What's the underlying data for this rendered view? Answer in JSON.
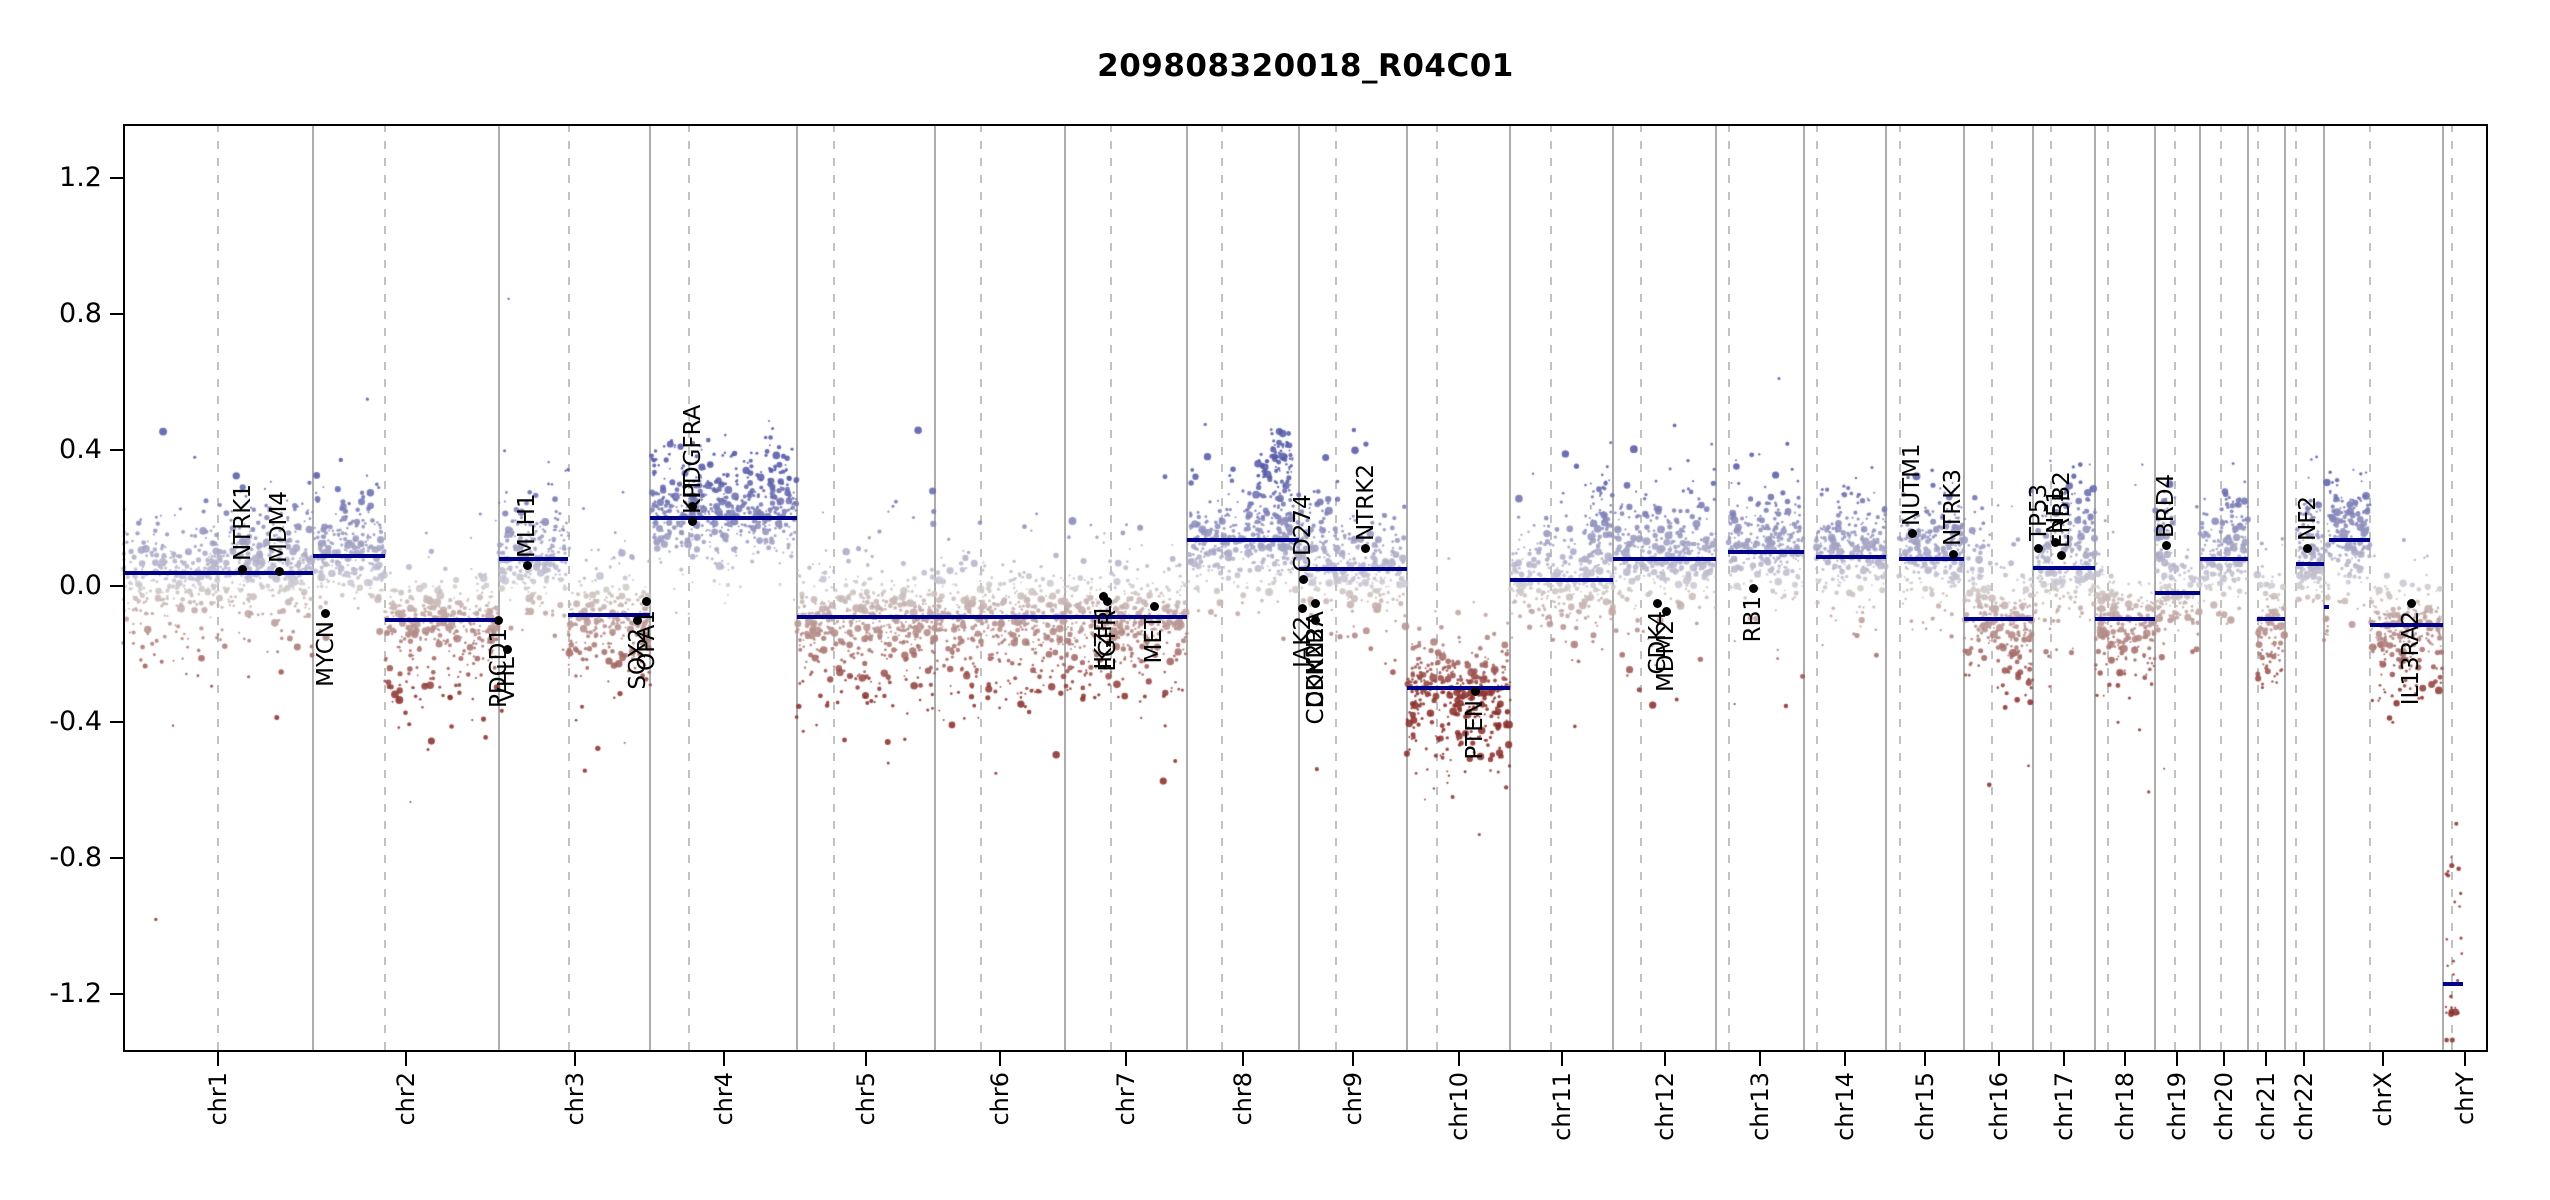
{
  "title": "209808320018_R04C01",
  "chart_data": {
    "type": "scatter",
    "title": "209808320018_R04C01",
    "xlabel": "",
    "ylabel": "",
    "ylim": [
      -1.37,
      1.36
    ],
    "grid": "solid gray lines at chromosome boundaries, dashed gray lines at centromeres",
    "legend": "none",
    "colors": {
      "segment": "#00008b",
      "gain_point": "#565fa8",
      "neutral_point": "#d0cccb",
      "loss_point": "#8b312c",
      "gene_marker": "#000000",
      "boundary_line": "#adadad",
      "centromere_line": "#c2c2c2"
    },
    "yticks": [
      {
        "v": 1.2,
        "label": "1.2"
      },
      {
        "v": 0.8,
        "label": "0.8"
      },
      {
        "v": 0.4,
        "label": "0.4"
      },
      {
        "v": 0.0,
        "label": "0.0"
      },
      {
        "v": -0.4,
        "label": "-0.4"
      },
      {
        "v": -0.8,
        "label": "-0.8"
      },
      {
        "v": -1.2,
        "label": "-1.2"
      }
    ],
    "genome_total_mb": 3095.68,
    "chromosomes": [
      {
        "name": "chr1",
        "length_mb": 249.25,
        "centromere_mb": 125.0
      },
      {
        "name": "chr2",
        "length_mb": 243.2,
        "centromere_mb": 93.3
      },
      {
        "name": "chr3",
        "length_mb": 198.02,
        "centromere_mb": 91.0
      },
      {
        "name": "chr4",
        "length_mb": 191.15,
        "centromere_mb": 50.4
      },
      {
        "name": "chr5",
        "length_mb": 180.92,
        "centromere_mb": 48.4
      },
      {
        "name": "chr6",
        "length_mb": 171.12,
        "centromere_mb": 61.0
      },
      {
        "name": "chr7",
        "length_mb": 159.14,
        "centromere_mb": 59.9
      },
      {
        "name": "chr8",
        "length_mb": 146.36,
        "centromere_mb": 45.6
      },
      {
        "name": "chr9",
        "length_mb": 141.21,
        "centromere_mb": 49.0
      },
      {
        "name": "chr10",
        "length_mb": 135.53,
        "centromere_mb": 40.2
      },
      {
        "name": "chr11",
        "length_mb": 135.01,
        "centromere_mb": 53.7
      },
      {
        "name": "chr12",
        "length_mb": 133.85,
        "centromere_mb": 35.8
      },
      {
        "name": "chr13",
        "length_mb": 115.17,
        "centromere_mb": 17.9
      },
      {
        "name": "chr14",
        "length_mb": 107.35,
        "centromere_mb": 17.6
      },
      {
        "name": "chr15",
        "length_mb": 102.53,
        "centromere_mb": 19.0
      },
      {
        "name": "chr16",
        "length_mb": 90.35,
        "centromere_mb": 36.6
      },
      {
        "name": "chr17",
        "length_mb": 81.2,
        "centromere_mb": 24.0
      },
      {
        "name": "chr18",
        "length_mb": 78.08,
        "centromere_mb": 17.2
      },
      {
        "name": "chr19",
        "length_mb": 59.13,
        "centromere_mb": 26.5
      },
      {
        "name": "chr20",
        "length_mb": 63.03,
        "centromere_mb": 27.5
      },
      {
        "name": "chr21",
        "length_mb": 48.13,
        "centromere_mb": 13.2
      },
      {
        "name": "chr22",
        "length_mb": 51.3,
        "centromere_mb": 14.7
      },
      {
        "name": "chrX",
        "length_mb": 155.27,
        "centromere_mb": 60.6
      },
      {
        "name": "chrY",
        "length_mb": 59.37,
        "centromere_mb": 12.5
      }
    ],
    "segments": [
      {
        "chrom": "chr1",
        "start_mb": 0,
        "end_mb": 249.25,
        "log2": 0.04
      },
      {
        "chrom": "chr2",
        "start_mb": 0,
        "end_mb": 93.3,
        "log2": 0.09
      },
      {
        "chrom": "chr2",
        "start_mb": 93.3,
        "end_mb": 243.2,
        "log2": -0.1
      },
      {
        "chrom": "chr3",
        "start_mb": 0,
        "end_mb": 90.5,
        "log2": 0.08
      },
      {
        "chrom": "chr3",
        "start_mb": 90.5,
        "end_mb": 198.02,
        "log2": -0.085
      },
      {
        "chrom": "chr4",
        "start_mb": 0,
        "end_mb": 191.15,
        "log2": 0.2
      },
      {
        "chrom": "chr5",
        "start_mb": 0,
        "end_mb": 180.92,
        "log2": -0.09
      },
      {
        "chrom": "chr6",
        "start_mb": 0,
        "end_mb": 171.12,
        "log2": -0.09
      },
      {
        "chrom": "chr7",
        "start_mb": 0,
        "end_mb": 159.14,
        "log2": -0.09
      },
      {
        "chrom": "chr8",
        "start_mb": 0,
        "end_mb": 146.36,
        "log2": 0.135
      },
      {
        "chrom": "chr9",
        "start_mb": 0,
        "end_mb": 141.21,
        "log2": 0.05
      },
      {
        "chrom": "chr10",
        "start_mb": 0,
        "end_mb": 135.53,
        "log2": -0.3
      },
      {
        "chrom": "chr11",
        "start_mb": 0,
        "end_mb": 135.01,
        "log2": 0.02
      },
      {
        "chrom": "chr12",
        "start_mb": 0,
        "end_mb": 133.85,
        "log2": 0.08
      },
      {
        "chrom": "chr13",
        "start_mb": 16,
        "end_mb": 115.17,
        "log2": 0.1
      },
      {
        "chrom": "chr14",
        "start_mb": 16,
        "end_mb": 107.35,
        "log2": 0.085
      },
      {
        "chrom": "chr15",
        "start_mb": 17,
        "end_mb": 102.53,
        "log2": 0.08
      },
      {
        "chrom": "chr16",
        "start_mb": 0,
        "end_mb": 90.35,
        "log2": -0.095
      },
      {
        "chrom": "chr17",
        "start_mb": 0,
        "end_mb": 81.2,
        "log2": 0.055
      },
      {
        "chrom": "chr18",
        "start_mb": 0,
        "end_mb": 78.08,
        "log2": -0.095
      },
      {
        "chrom": "chr19",
        "start_mb": 0,
        "end_mb": 59.13,
        "log2": -0.02
      },
      {
        "chrom": "chr20",
        "start_mb": 0,
        "end_mb": 63.03,
        "log2": 0.08
      },
      {
        "chrom": "chr21",
        "start_mb": 12,
        "end_mb": 48.13,
        "log2": -0.097
      },
      {
        "chrom": "chr22",
        "start_mb": 15,
        "end_mb": 51.3,
        "log2": 0.065
      },
      {
        "chrom": "chrX",
        "start_mb": 0,
        "end_mb": 6,
        "log2": -0.06
      },
      {
        "chrom": "chrX",
        "start_mb": 6,
        "end_mb": 60.6,
        "log2": 0.135
      },
      {
        "chrom": "chrX",
        "start_mb": 60.6,
        "end_mb": 155.27,
        "log2": -0.115
      },
      {
        "chrom": "chrY",
        "start_mb": 0,
        "end_mb": 26,
        "log2": -1.17,
        "density": 0
      }
    ],
    "genes": [
      {
        "name": "NTRK1",
        "chrom": "chr1",
        "mb": 156.8,
        "log2": 0.05,
        "label": "above"
      },
      {
        "name": "MDM4",
        "chrom": "chr1",
        "mb": 204.5,
        "log2": 0.045,
        "label": "above"
      },
      {
        "name": "MYCN",
        "chrom": "chr2",
        "mb": 16.1,
        "log2": -0.08,
        "label": "below"
      },
      {
        "name": "PDCD1",
        "chrom": "chr2",
        "mb": 242.8,
        "log2": -0.1,
        "label": "below"
      },
      {
        "name": "VHL",
        "chrom": "chr3",
        "mb": 10.2,
        "log2": -0.185,
        "label": "below"
      },
      {
        "name": "MLH1",
        "chrom": "chr3",
        "mb": 37.0,
        "log2": 0.06,
        "label": "above"
      },
      {
        "name": "SOX2",
        "chrom": "chr3",
        "mb": 181.4,
        "log2": -0.1,
        "label": "below"
      },
      {
        "name": "OPA1",
        "chrom": "chr3",
        "mb": 193.3,
        "log2": -0.045,
        "label": "below"
      },
      {
        "name": "PDGFRA",
        "chrom": "chr4",
        "mb": 55.1,
        "log2": 0.235,
        "label": "above"
      },
      {
        "name": "KIT",
        "chrom": "chr4",
        "mb": 55.6,
        "log2": 0.19,
        "label": "above"
      },
      {
        "name": "IKZF1",
        "chrom": "chr7",
        "mb": 50.3,
        "log2": -0.03,
        "label": "below"
      },
      {
        "name": "EGFR",
        "chrom": "chr7",
        "mb": 55.1,
        "log2": -0.045,
        "label": "below"
      },
      {
        "name": "MET",
        "chrom": "chr7",
        "mb": 116.3,
        "log2": -0.06,
        "label": "below"
      },
      {
        "name": "JAK2",
        "chrom": "chr9",
        "mb": 5.0,
        "log2": -0.065,
        "label": "below"
      },
      {
        "name": "CD274",
        "chrom": "chr9",
        "mb": 5.45,
        "log2": 0.02,
        "label": "above"
      },
      {
        "name": "CDKN2A",
        "chrom": "chr9",
        "mb": 21.97,
        "log2": -0.05,
        "label": "below"
      },
      {
        "name": "CDKN2B",
        "chrom": "chr9",
        "mb": 22.0,
        "log2": -0.1,
        "label": "below"
      },
      {
        "name": "NTRK2",
        "chrom": "chr9",
        "mb": 87.3,
        "log2": 0.11,
        "label": "above"
      },
      {
        "name": "PTEN",
        "chrom": "chr10",
        "mb": 89.7,
        "log2": -0.31,
        "label": "below"
      },
      {
        "name": "CDK4",
        "chrom": "chr12",
        "mb": 58.1,
        "log2": -0.05,
        "label": "below"
      },
      {
        "name": "MDM2",
        "chrom": "chr12",
        "mb": 69.2,
        "log2": -0.075,
        "label": "below"
      },
      {
        "name": "RB1",
        "chrom": "chr13",
        "mb": 48.9,
        "log2": -0.005,
        "label": "below"
      },
      {
        "name": "NUTM1",
        "chrom": "chr15",
        "mb": 34.6,
        "log2": 0.155,
        "label": "above"
      },
      {
        "name": "NTRK3",
        "chrom": "chr15",
        "mb": 88.4,
        "log2": 0.095,
        "label": "above"
      },
      {
        "name": "TP53",
        "chrom": "chr17",
        "mb": 7.57,
        "log2": 0.11,
        "label": "above"
      },
      {
        "name": "NF1",
        "chrom": "chr17",
        "mb": 29.4,
        "log2": 0.13,
        "label": "above"
      },
      {
        "name": "ERBB2",
        "chrom": "chr17",
        "mb": 37.8,
        "log2": 0.09,
        "label": "above"
      },
      {
        "name": "BRD4",
        "chrom": "chr19",
        "mb": 15.3,
        "log2": 0.12,
        "label": "above"
      },
      {
        "name": "NF2",
        "chrom": "chr22",
        "mb": 30.0,
        "log2": 0.11,
        "label": "above"
      },
      {
        "name": "IL13RA2",
        "chrom": "chrX",
        "mb": 114.25,
        "log2": -0.05,
        "label": "below"
      }
    ],
    "clusters": [
      {
        "chrom": "chr4",
        "start_mb": 0,
        "end_mb": 191,
        "n": 120,
        "mean": 0.3,
        "sd": 0.07
      },
      {
        "chrom": "chr8",
        "start_mb": 90,
        "end_mb": 140,
        "n": 80,
        "mean": 0.3,
        "sd": 0.07
      },
      {
        "chrom": "chr8",
        "start_mb": 110,
        "end_mb": 135,
        "n": 30,
        "mean": 0.4,
        "sd": 0.05
      },
      {
        "chrom": "chr11",
        "start_mb": 98,
        "end_mb": 135,
        "n": 60,
        "mean": 0.2,
        "sd": 0.07
      },
      {
        "chrom": "chr17",
        "start_mb": 38,
        "end_mb": 81,
        "n": 50,
        "mean": 0.2,
        "sd": 0.07
      },
      {
        "chrom": "chr20",
        "start_mb": 25,
        "end_mb": 63,
        "n": 45,
        "mean": 0.19,
        "sd": 0.07
      },
      {
        "chrom": "chr12",
        "start_mb": 0,
        "end_mb": 133,
        "n": 50,
        "mean": 0.17,
        "sd": 0.07
      },
      {
        "chrom": "chr15",
        "start_mb": 20,
        "end_mb": 102,
        "n": 45,
        "mean": 0.18,
        "sd": 0.07
      },
      {
        "chrom": "chr14",
        "start_mb": 20,
        "end_mb": 107,
        "n": 40,
        "mean": 0.17,
        "sd": 0.06
      },
      {
        "chrom": "chr13",
        "start_mb": 20,
        "end_mb": 115,
        "n": 45,
        "mean": 0.18,
        "sd": 0.06
      },
      {
        "chrom": "chr19",
        "start_mb": 0,
        "end_mb": 24,
        "n": 35,
        "mean": 0.17,
        "sd": 0.07
      },
      {
        "chrom": "chr22",
        "start_mb": 20,
        "end_mb": 51,
        "n": 40,
        "mean": 0.16,
        "sd": 0.06
      },
      {
        "chrom": "chrX",
        "start_mb": 3,
        "end_mb": 60,
        "n": 50,
        "mean": 0.21,
        "sd": 0.06
      },
      {
        "chrom": "chr16",
        "start_mb": 0,
        "end_mb": 34,
        "n": 25,
        "mean": 0.12,
        "sd": 0.06
      },
      {
        "chrom": "chr9",
        "start_mb": 0,
        "end_mb": 40,
        "n": 40,
        "mean": 0.15,
        "sd": 0.07
      },
      {
        "chrom": "chr2",
        "start_mb": 0,
        "end_mb": 90,
        "n": 40,
        "mean": 0.17,
        "sd": 0.06
      },
      {
        "chrom": "chr1",
        "start_mb": 140,
        "end_mb": 249,
        "n": 50,
        "mean": 0.16,
        "sd": 0.06
      },
      {
        "chrom": "chr3",
        "start_mb": 0,
        "end_mb": 90,
        "n": 30,
        "mean": 0.16,
        "sd": 0.05
      },
      {
        "chrom": "chr5",
        "start_mb": 0,
        "end_mb": 180,
        "n": 60,
        "mean": -0.26,
        "sd": 0.07
      },
      {
        "chrom": "chr6",
        "start_mb": 0,
        "end_mb": 171,
        "n": 55,
        "mean": -0.26,
        "sd": 0.07
      },
      {
        "chrom": "chr7",
        "start_mb": 0,
        "end_mb": 159,
        "n": 50,
        "mean": -0.26,
        "sd": 0.07
      },
      {
        "chrom": "chr2",
        "start_mb": 95,
        "end_mb": 243,
        "n": 40,
        "mean": -0.27,
        "sd": 0.07
      },
      {
        "chrom": "chr3",
        "start_mb": 95,
        "end_mb": 198,
        "n": 25,
        "mean": -0.24,
        "sd": 0.06
      },
      {
        "chrom": "chr10",
        "start_mb": 0,
        "end_mb": 135,
        "n": 50,
        "mean": -0.46,
        "sd": 0.06
      },
      {
        "chrom": "chr16",
        "start_mb": 38,
        "end_mb": 90,
        "n": 30,
        "mean": -0.25,
        "sd": 0.06
      },
      {
        "chrom": "chr18",
        "start_mb": 0,
        "end_mb": 78,
        "n": 25,
        "mean": -0.23,
        "sd": 0.06
      },
      {
        "chrom": "chr21",
        "start_mb": 12,
        "end_mb": 48,
        "n": 18,
        "mean": -0.23,
        "sd": 0.05
      },
      {
        "chrom": "chrX",
        "start_mb": 63,
        "end_mb": 155,
        "n": 30,
        "mean": -0.27,
        "sd": 0.07
      },
      {
        "chrom": "chr1",
        "start_mb": 0,
        "end_mb": 249,
        "n": 20,
        "mean": -0.18,
        "sd": 0.05
      },
      {
        "chrom": "chrY",
        "start_mb": 0,
        "end_mb": 26,
        "n": 20,
        "mean": -1.0,
        "sd": 0.16
      },
      {
        "chrom": "chrY",
        "start_mb": 3,
        "end_mb": 22,
        "n": 8,
        "mean": -1.24,
        "sd": 0.02
      }
    ],
    "outliers": [
      {
        "chrom": "chr1",
        "mb": 43,
        "log2": -0.98,
        "r": 1.6
      },
      {
        "chrom": "chr5",
        "mb": 178,
        "log2": 0.28,
        "r": 3.5
      },
      {
        "chrom": "chr5",
        "mb": 179.5,
        "log2": 0.22,
        "r": 2.5
      },
      {
        "chrom": "chr9",
        "mb": 72,
        "log2": 0.46,
        "r": 2.2
      },
      {
        "chrom": "chr9",
        "mb": 73.5,
        "log2": 0.4,
        "r": 3.8
      },
      {
        "chrom": "chr10",
        "mb": 95,
        "log2": -0.73,
        "r": 1.5
      },
      {
        "chrom": "chr10",
        "mb": 60,
        "log2": -0.62,
        "r": 2.0
      },
      {
        "chrom": "chr5",
        "mb": 120,
        "log2": -0.52,
        "r": 1.5
      },
      {
        "chrom": "chr6",
        "mb": 80,
        "log2": -0.55,
        "r": 1.5
      },
      {
        "chrom": "chr2",
        "mb": 150,
        "log2": -0.48,
        "r": 1.5
      },
      {
        "chrom": "chr18",
        "mb": 30,
        "log2": -0.4,
        "r": 1.5
      },
      {
        "chrom": "chrX",
        "mb": 90,
        "log2": -0.4,
        "r": 1.5
      }
    ]
  }
}
